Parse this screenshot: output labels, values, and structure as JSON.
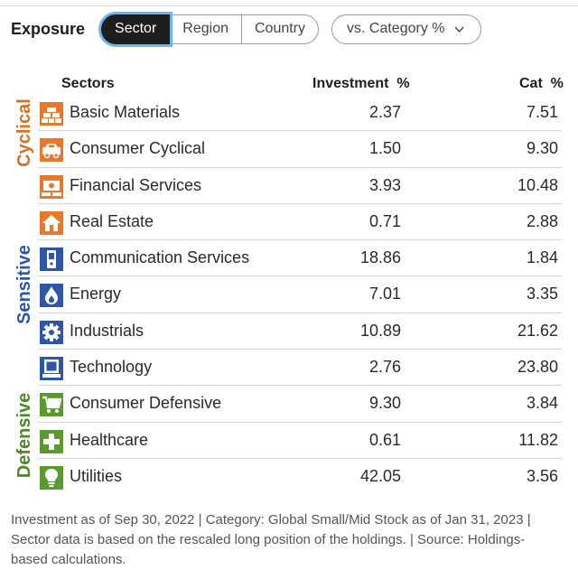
{
  "header": {
    "title": "Exposure",
    "tabs": [
      {
        "label": "Sector",
        "active": true
      },
      {
        "label": "Region",
        "active": false
      },
      {
        "label": "Country",
        "active": false
      }
    ],
    "compare_dropdown": {
      "selected": "vs. Category %"
    }
  },
  "table": {
    "columns": {
      "sectors": "Sectors",
      "investment": "Investment  %",
      "category": "Cat  %"
    },
    "groups": [
      {
        "label": "Cyclical",
        "color": "#d9701f"
      },
      {
        "label": "Sensitive",
        "color": "#2d56a6"
      },
      {
        "label": "Defensive",
        "color": "#4f8a2a"
      }
    ],
    "rows": [
      {
        "name": "Basic Materials",
        "investment": "2.37",
        "category": "7.51",
        "icon": "bricks-icon",
        "color": "#e8792c"
      },
      {
        "name": "Consumer Cyclical",
        "investment": "1.50",
        "category": "9.30",
        "icon": "car-icon",
        "color": "#e8792c"
      },
      {
        "name": "Financial Services",
        "investment": "3.93",
        "category": "10.48",
        "icon": "money-icon",
        "color": "#e8792c"
      },
      {
        "name": "Real Estate",
        "investment": "0.71",
        "category": "2.88",
        "icon": "house-icon",
        "color": "#e8792c"
      },
      {
        "name": "Communication Services",
        "investment": "18.86",
        "category": "1.84",
        "icon": "phone-icon",
        "color": "#2d56a6"
      },
      {
        "name": "Energy",
        "investment": "7.01",
        "category": "3.35",
        "icon": "flame-icon",
        "color": "#2d56a6"
      },
      {
        "name": "Industrials",
        "investment": "10.89",
        "category": "21.62",
        "icon": "gear-icon",
        "color": "#2d56a6"
      },
      {
        "name": "Technology",
        "investment": "2.76",
        "category": "23.80",
        "icon": "computer-icon",
        "color": "#2d56a6"
      },
      {
        "name": "Consumer Defensive",
        "investment": "9.30",
        "category": "3.84",
        "icon": "cart-icon",
        "color": "#5a9a2e"
      },
      {
        "name": "Healthcare",
        "investment": "0.61",
        "category": "11.82",
        "icon": "cross-icon",
        "color": "#5a9a2e"
      },
      {
        "name": "Utilities",
        "investment": "42.05",
        "category": "3.56",
        "icon": "bulb-icon",
        "color": "#5a9a2e"
      }
    ]
  },
  "footnote": "Investment as of Sep 30, 2022 | Category: Global Small/Mid Stock as of Jan 31, 2023 | Sector data is based on the rescaled long position of the holdings. | Source: Holdings-based calculations."
}
